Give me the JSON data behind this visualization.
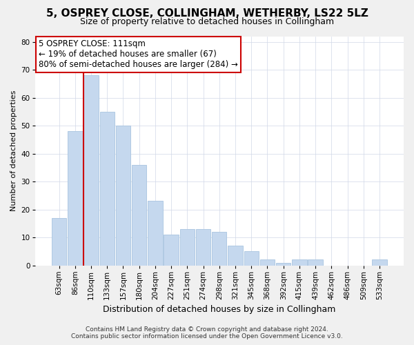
{
  "title": "5, OSPREY CLOSE, COLLINGHAM, WETHERBY, LS22 5LZ",
  "subtitle": "Size of property relative to detached houses in Collingham",
  "xlabel": "Distribution of detached houses by size in Collingham",
  "ylabel": "Number of detached properties",
  "categories": [
    "63sqm",
    "86sqm",
    "110sqm",
    "133sqm",
    "157sqm",
    "180sqm",
    "204sqm",
    "227sqm",
    "251sqm",
    "274sqm",
    "298sqm",
    "321sqm",
    "345sqm",
    "368sqm",
    "392sqm",
    "415sqm",
    "439sqm",
    "462sqm",
    "486sqm",
    "509sqm",
    "533sqm"
  ],
  "values": [
    17,
    48,
    68,
    55,
    50,
    36,
    23,
    11,
    13,
    13,
    12,
    7,
    5,
    2,
    1,
    2,
    2,
    0,
    0,
    0,
    2
  ],
  "bar_color": "#c5d8ee",
  "bar_edgecolor": "#a8c4e0",
  "vline_color": "#cc0000",
  "vline_x_idx": 2,
  "annotation_line1": "5 OSPREY CLOSE: 111sqm",
  "annotation_line2": "← 19% of detached houses are smaller (67)",
  "annotation_line3": "80% of semi-detached houses are larger (284) →",
  "annotation_box_facecolor": "#ffffff",
  "annotation_box_edgecolor": "#cc0000",
  "ylim": [
    0,
    82
  ],
  "yticks": [
    0,
    10,
    20,
    30,
    40,
    50,
    60,
    70,
    80
  ],
  "footer_line1": "Contains HM Land Registry data © Crown copyright and database right 2024.",
  "footer_line2": "Contains public sector information licensed under the Open Government Licence v3.0.",
  "title_fontsize": 11,
  "subtitle_fontsize": 9,
  "xlabel_fontsize": 9,
  "ylabel_fontsize": 8,
  "tick_fontsize": 7.5,
  "annotation_fontsize": 8.5,
  "footer_fontsize": 6.5,
  "background_color": "#f0f0f0",
  "plot_background_color": "#ffffff",
  "grid_color": "#d0d8e8"
}
